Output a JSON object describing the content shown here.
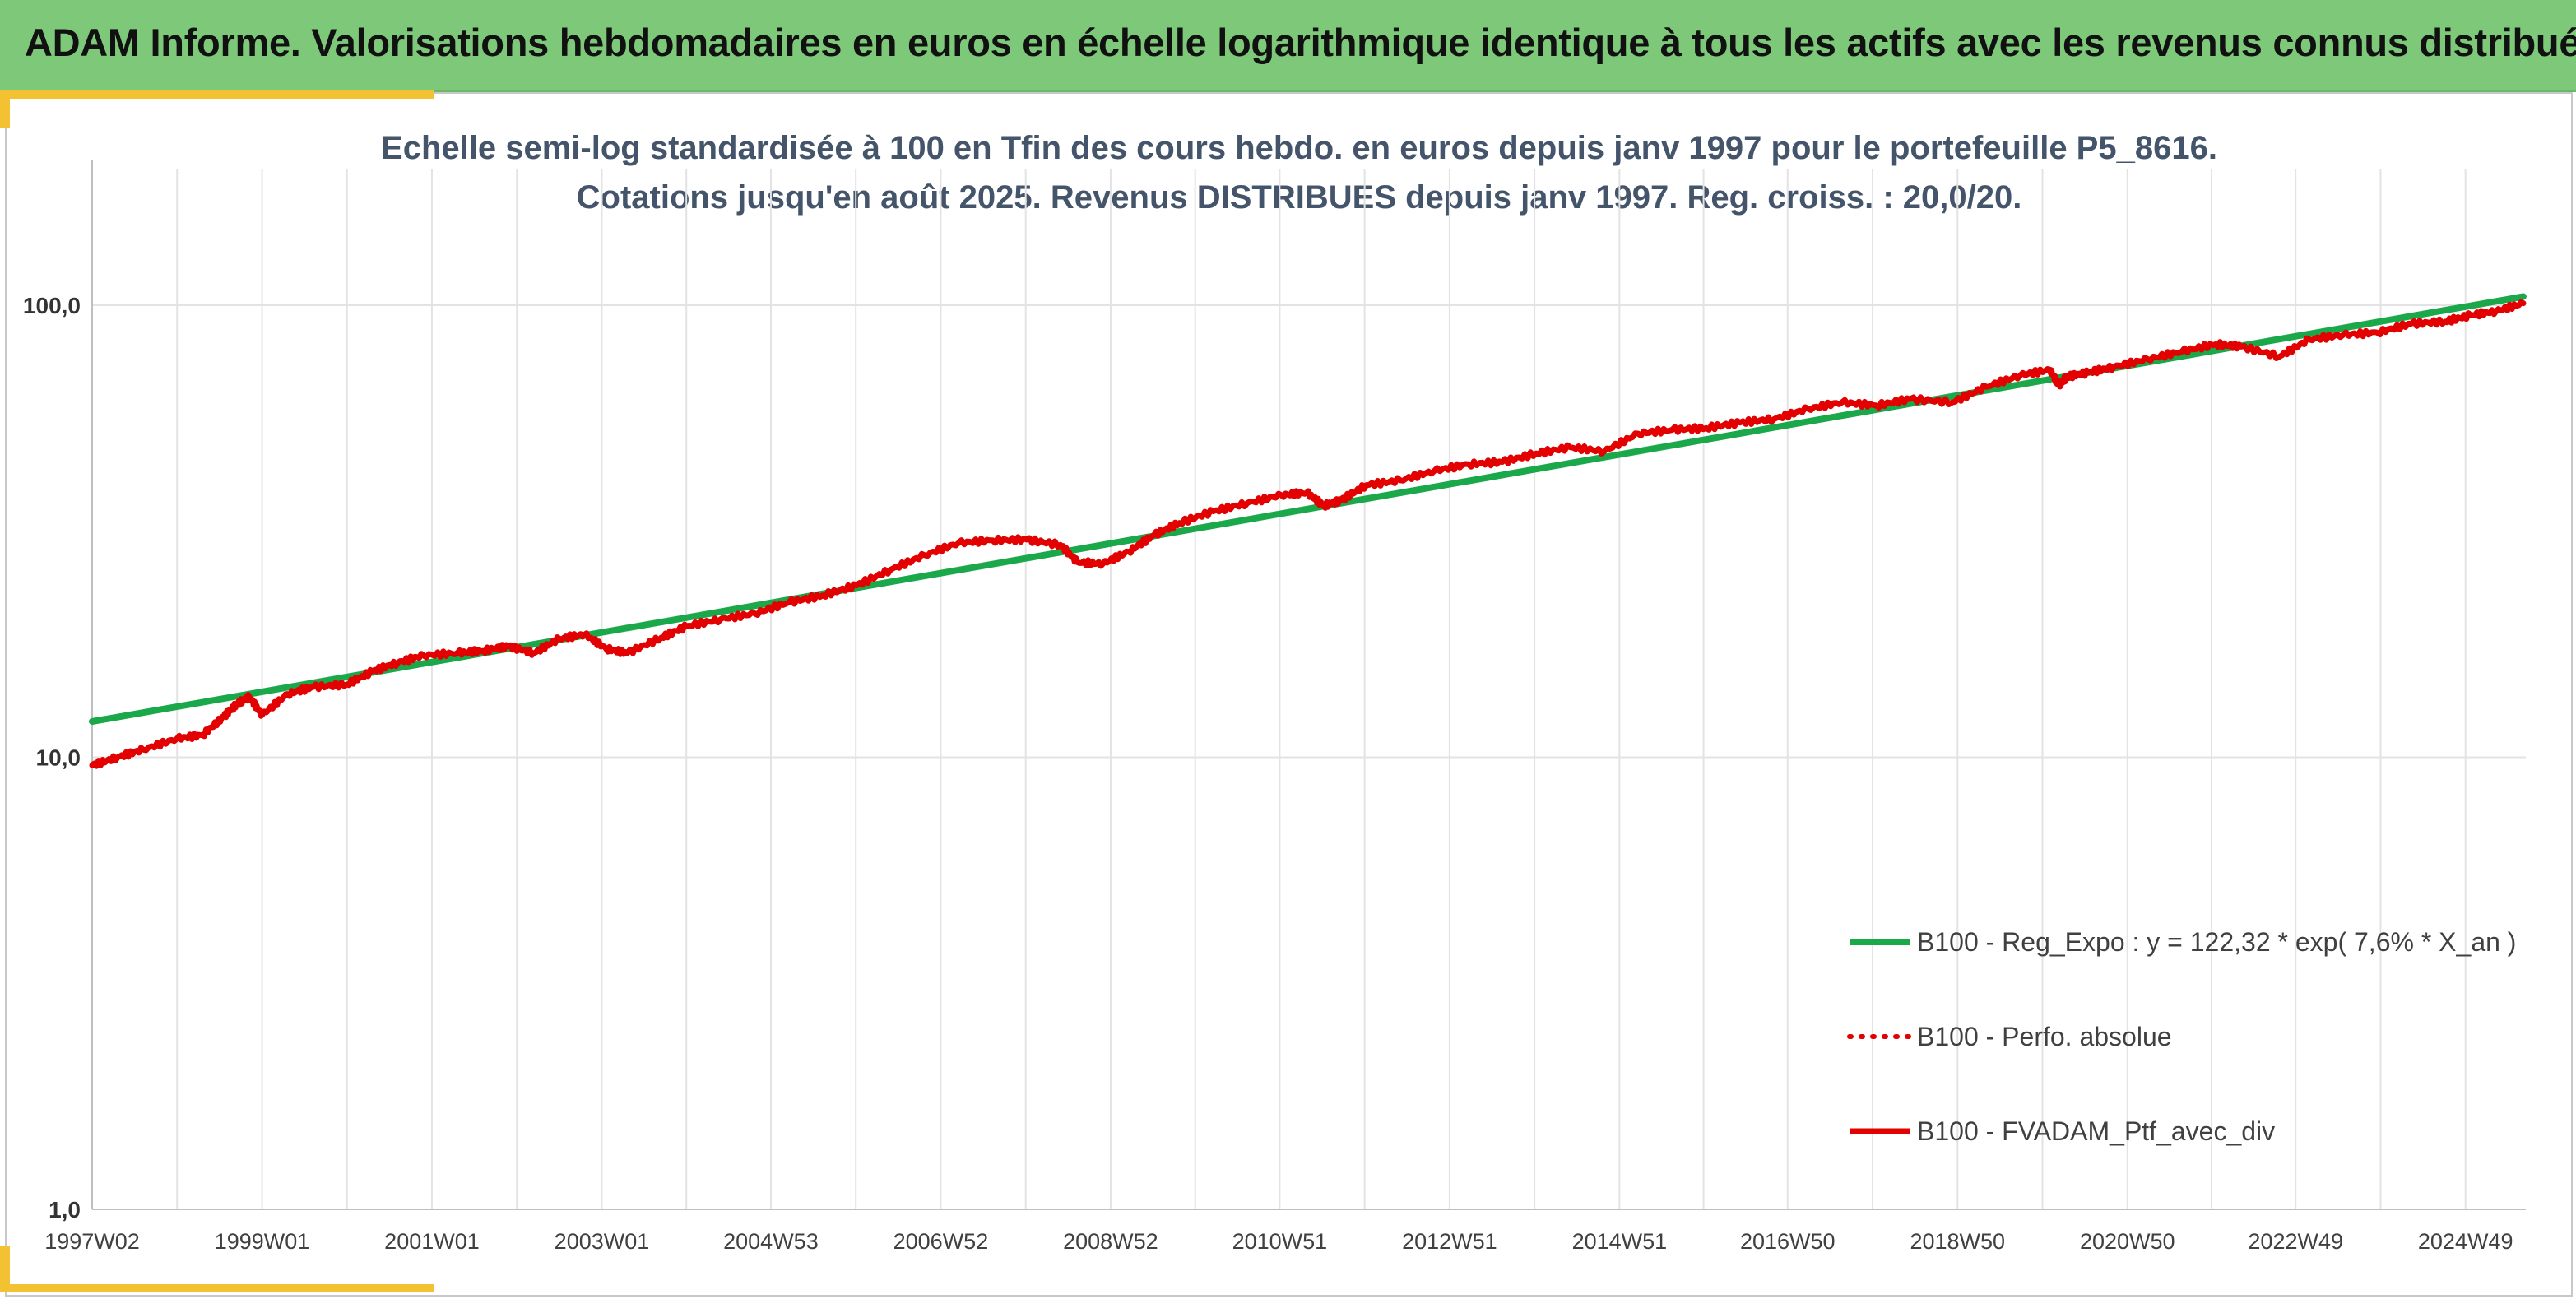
{
  "header": {
    "title": "ADAM Informe. Valorisations hebdomadaires en euros en échelle logarithmique identique à tous les actifs avec les revenus connus distribués"
  },
  "colors": {
    "banner": "#7dc979",
    "accent": "#f2c233",
    "regression": "#1aa84a",
    "portfolio": "#e30000",
    "grid": "#e3e3e3"
  },
  "chart_data": {
    "type": "line",
    "title": [
      "Echelle semi-log standardisée à 100 en Tfin des cours hebdo. en euros depuis janv 1997 pour le portefeuille P5_8616.",
      "Cotations jusqu'en août 2025. Revenus DISTRIBUES depuis janv 1997. Reg. croiss. : 20,0/20."
    ],
    "y_scale": "log",
    "ylim": [
      1,
      200
    ],
    "y_ticks": [
      {
        "value": 1,
        "label": "1,0"
      },
      {
        "value": 10,
        "label": "10,0"
      },
      {
        "value": 100,
        "label": "100,0"
      }
    ],
    "x_ticks": [
      {
        "year": 1997.0,
        "label": "1997W02"
      },
      {
        "year": 1999.0,
        "label": "1999W01"
      },
      {
        "year": 2001.0,
        "label": "2001W01"
      },
      {
        "year": 2003.0,
        "label": "2003W01"
      },
      {
        "year": 2004.99,
        "label": "2004W53"
      },
      {
        "year": 2006.99,
        "label": "2006W52"
      },
      {
        "year": 2008.99,
        "label": "2008W52"
      },
      {
        "year": 2010.98,
        "label": "2010W51"
      },
      {
        "year": 2012.98,
        "label": "2012W51"
      },
      {
        "year": 2014.98,
        "label": "2014W51"
      },
      {
        "year": 2016.96,
        "label": "2016W50"
      },
      {
        "year": 2018.96,
        "label": "2018W50"
      },
      {
        "year": 2020.96,
        "label": "2020W50"
      },
      {
        "year": 2022.94,
        "label": "2022W49"
      },
      {
        "year": 2024.94,
        "label": "2024W49"
      }
    ],
    "xlim": [
      1997.0,
      2025.65
    ],
    "grid": true,
    "legend_position": "bottom-right",
    "series": [
      {
        "name": "B100 - Reg_Expo : y = 122,32 * exp( 7,6% *  X_an )",
        "style": "solid-green",
        "x": [
          1997.0,
          2025.62
        ],
        "y": [
          12.0,
          104.5
        ]
      },
      {
        "name": "B100 - Perfo. absolue",
        "style": "dotted-red",
        "x": [],
        "y": []
      },
      {
        "name": "B100 - FVADAM_Ptf_avec_div",
        "style": "solid-red",
        "x": [
          1997.0,
          1997.3,
          1997.6,
          1998.0,
          1998.3,
          1998.55,
          1998.7,
          1998.85,
          1999.0,
          1999.3,
          1999.6,
          2000.0,
          2000.3,
          2000.6,
          2000.9,
          2001.3,
          2001.6,
          2001.9,
          2002.2,
          2002.5,
          2002.8,
          2003.05,
          2003.3,
          2003.7,
          2004.0,
          2004.4,
          2004.8,
          2005.2,
          2005.6,
          2006.0,
          2006.4,
          2006.8,
          2007.2,
          2007.6,
          2008.0,
          2008.4,
          2008.6,
          2008.9,
          2009.2,
          2009.5,
          2009.8,
          2010.2,
          2010.6,
          2011.0,
          2011.3,
          2011.5,
          2011.7,
          2012.0,
          2012.4,
          2012.8,
          2013.2,
          2013.6,
          2014.0,
          2014.4,
          2014.8,
          2015.2,
          2015.6,
          2016.0,
          2016.4,
          2016.8,
          2017.2,
          2017.6,
          2018.0,
          2018.4,
          2018.9,
          2019.3,
          2019.7,
          2020.05,
          2020.15,
          2020.25,
          2020.5,
          2020.8,
          2021.2,
          2021.6,
          2022.0,
          2022.3,
          2022.75,
          2023.1,
          2023.5,
          2023.9,
          2024.3,
          2024.7,
          2025.0,
          2025.3,
          2025.62
        ],
        "y": [
          9.6,
          10.0,
          10.4,
          11.0,
          11.2,
          12.3,
          13.1,
          13.6,
          12.4,
          13.8,
          14.3,
          14.5,
          15.5,
          16.2,
          16.8,
          17.0,
          17.2,
          17.6,
          17.0,
          18.3,
          18.7,
          17.4,
          17.0,
          18.4,
          19.5,
          20.2,
          20.8,
          22.0,
          22.8,
          24.0,
          26.0,
          28.0,
          29.8,
          30.2,
          30.3,
          29.5,
          27.0,
          26.8,
          28.5,
          31.0,
          33.0,
          35.0,
          36.5,
          38.0,
          38.5,
          36.0,
          37.0,
          40.0,
          41.0,
          43.0,
          44.5,
          45.0,
          47.0,
          48.5,
          47.5,
          52.0,
          53.0,
          53.5,
          55.0,
          56.0,
          59.0,
          61.0,
          60.0,
          62.0,
          61.0,
          66.0,
          70.0,
          72.0,
          66.5,
          69.5,
          71.0,
          73.0,
          76.0,
          79.0,
          82.0,
          81.0,
          77.0,
          84.0,
          86.0,
          87.0,
          91.0,
          92.0,
          95.0,
          97.0,
          101.0
        ]
      }
    ]
  }
}
